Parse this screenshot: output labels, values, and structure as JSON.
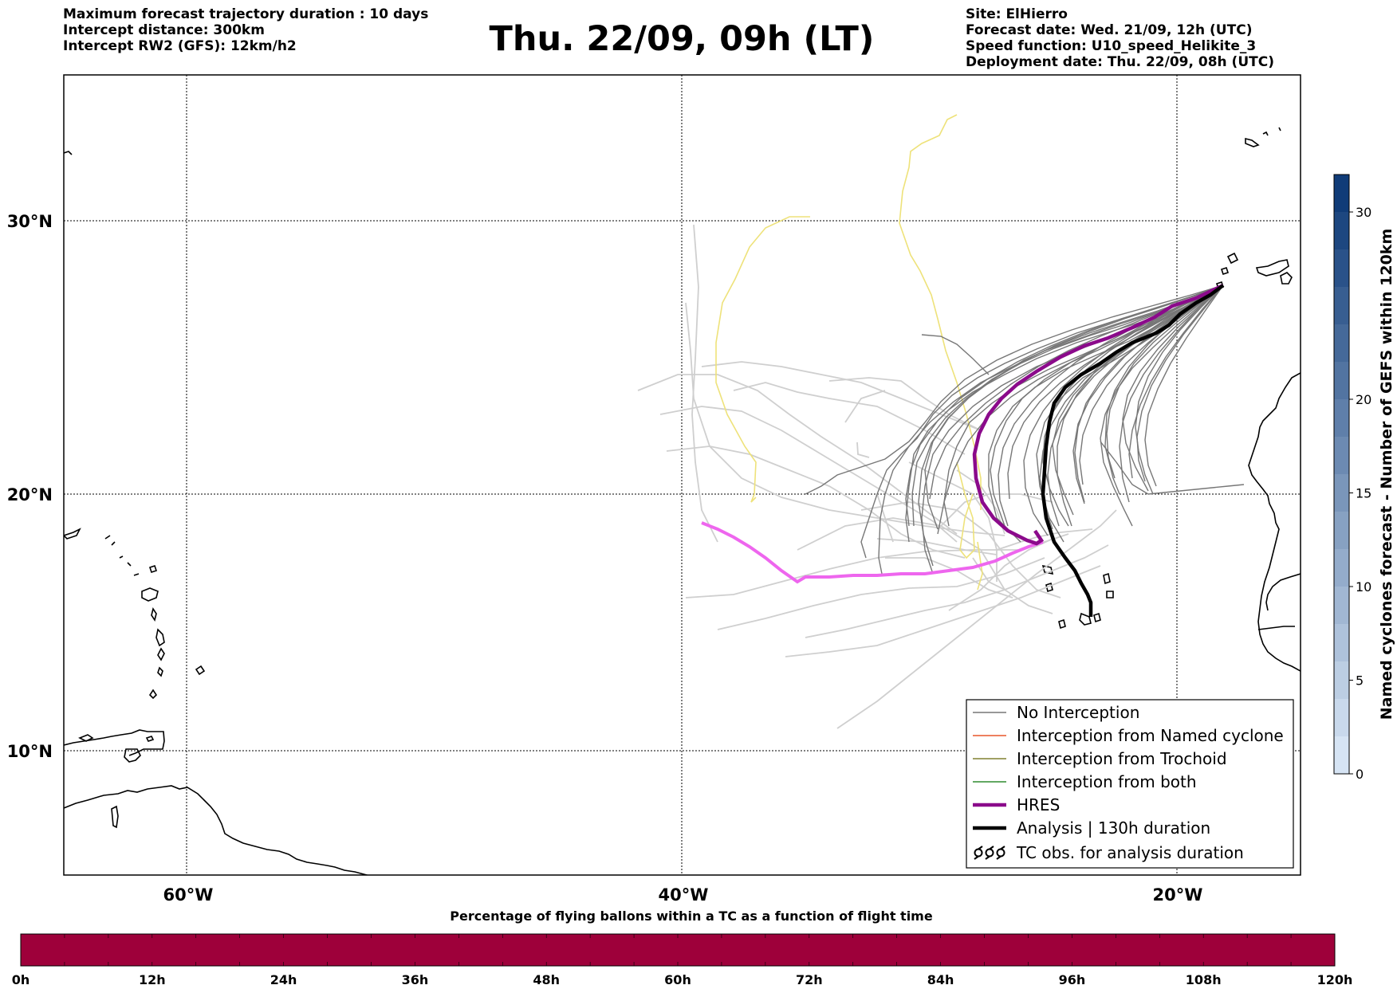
{
  "header": {
    "left": [
      "Maximum forecast trajectory duration : 10 days",
      "Intercept distance: 300km",
      "Intercept RW2 (GFS):  12km/h2"
    ],
    "title": "Thu. 22/09, 09h (LT)",
    "right": [
      "Site: ElHierro",
      "Forecast date: Wed. 21/09, 12h (UTC)",
      "Speed function: U10_speed_Helikite_3",
      "Deployment date: Thu. 22/09, 08h (UTC)"
    ]
  },
  "map": {
    "lat_labels": [
      {
        "lat": 30,
        "label": "30°N"
      },
      {
        "lat": 20,
        "label": "20°N"
      },
      {
        "lat": 10,
        "label": "10°N"
      }
    ],
    "lon_labels": [
      {
        "lon": -60,
        "label": "60°W"
      },
      {
        "lon": -40,
        "label": "40°W"
      },
      {
        "lon": -20,
        "label": "20°W"
      }
    ],
    "colors": {
      "no_interception": "#777777",
      "named_cyclone": "#e8572a",
      "trochoid": "#808030",
      "both": "#2e8b2e",
      "hres": "#8b0a8b",
      "analysis": "#000000",
      "hres_extension": "#ee66ee",
      "light_trajectory": "#cfcfcf",
      "yellow_trajectory": "#eee27a"
    }
  },
  "legend": {
    "items": [
      {
        "label": "No Interception",
        "style": "thin-gray"
      },
      {
        "label": "Interception from Named cyclone",
        "style": "thin-orange"
      },
      {
        "label": "Interception from Trochoid",
        "style": "thin-olive"
      },
      {
        "label": "Interception from both",
        "style": "thin-green"
      },
      {
        "label": "HRES",
        "style": "thick-purple"
      },
      {
        "label": "Analysis | 130h duration",
        "style": "thick-black"
      },
      {
        "label": "TC obs. for analysis duration",
        "style": "cyclone-symbols"
      }
    ]
  },
  "colorbar": {
    "label": "Named cyclones forecast - Number of GEFS within 120km",
    "ticks": [
      "0",
      "5",
      "10",
      "15",
      "20",
      "30"
    ],
    "levels": [
      0,
      2,
      4,
      6,
      8,
      10,
      12,
      14,
      16,
      18,
      20,
      22,
      24,
      26,
      28,
      30,
      32
    ]
  },
  "bottom": {
    "title": "Percentage of flying ballons within a TC as a function of flight time",
    "hour_ticks": [
      "0h",
      "12h",
      "24h",
      "36h",
      "48h",
      "60h",
      "72h",
      "84h",
      "96h",
      "108h",
      "120h"
    ],
    "bar_color": "#9e003a"
  }
}
